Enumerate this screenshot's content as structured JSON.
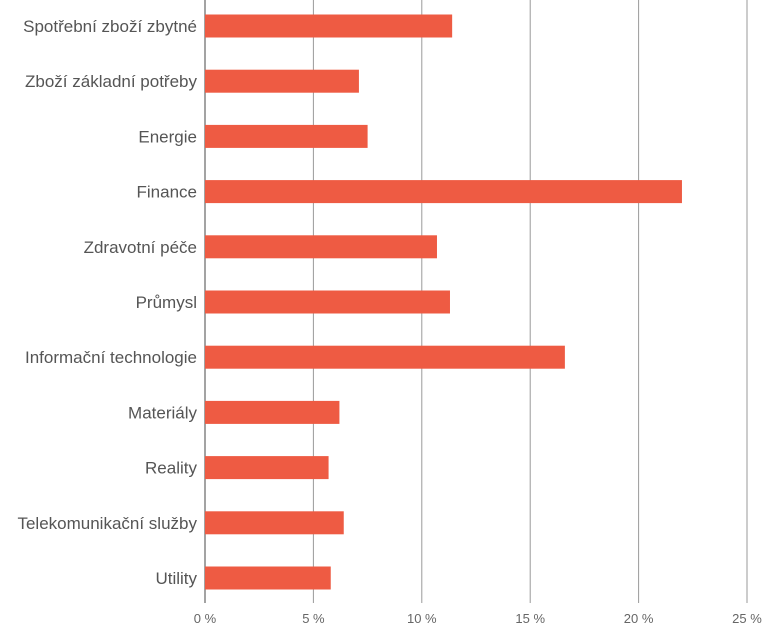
{
  "chart_data": {
    "type": "bar",
    "orientation": "horizontal",
    "categories": [
      "Spotřební zboží zbytné",
      "Zboží základní potřeby",
      "Energie",
      "Finance",
      "Zdravotní péče",
      "Průmysl",
      "Informační technologie",
      "Materiály",
      "Reality",
      "Telekomunikační služby",
      "Utility"
    ],
    "values": [
      11.4,
      7.1,
      7.5,
      22.0,
      10.7,
      11.3,
      16.6,
      6.2,
      5.7,
      6.4,
      5.8
    ],
    "xlim": [
      0,
      25
    ],
    "x_ticks": [
      0,
      5,
      10,
      15,
      20,
      25
    ],
    "x_tick_labels": [
      "0 %",
      "5 %",
      "10 %",
      "15 %",
      "20 %",
      "25 %"
    ],
    "title": "",
    "xlabel": "",
    "ylabel": "",
    "grid": "vertical",
    "bar_color": "#EE5B43",
    "grid_color": "#9a9a9a",
    "label_color": "#555555"
  }
}
